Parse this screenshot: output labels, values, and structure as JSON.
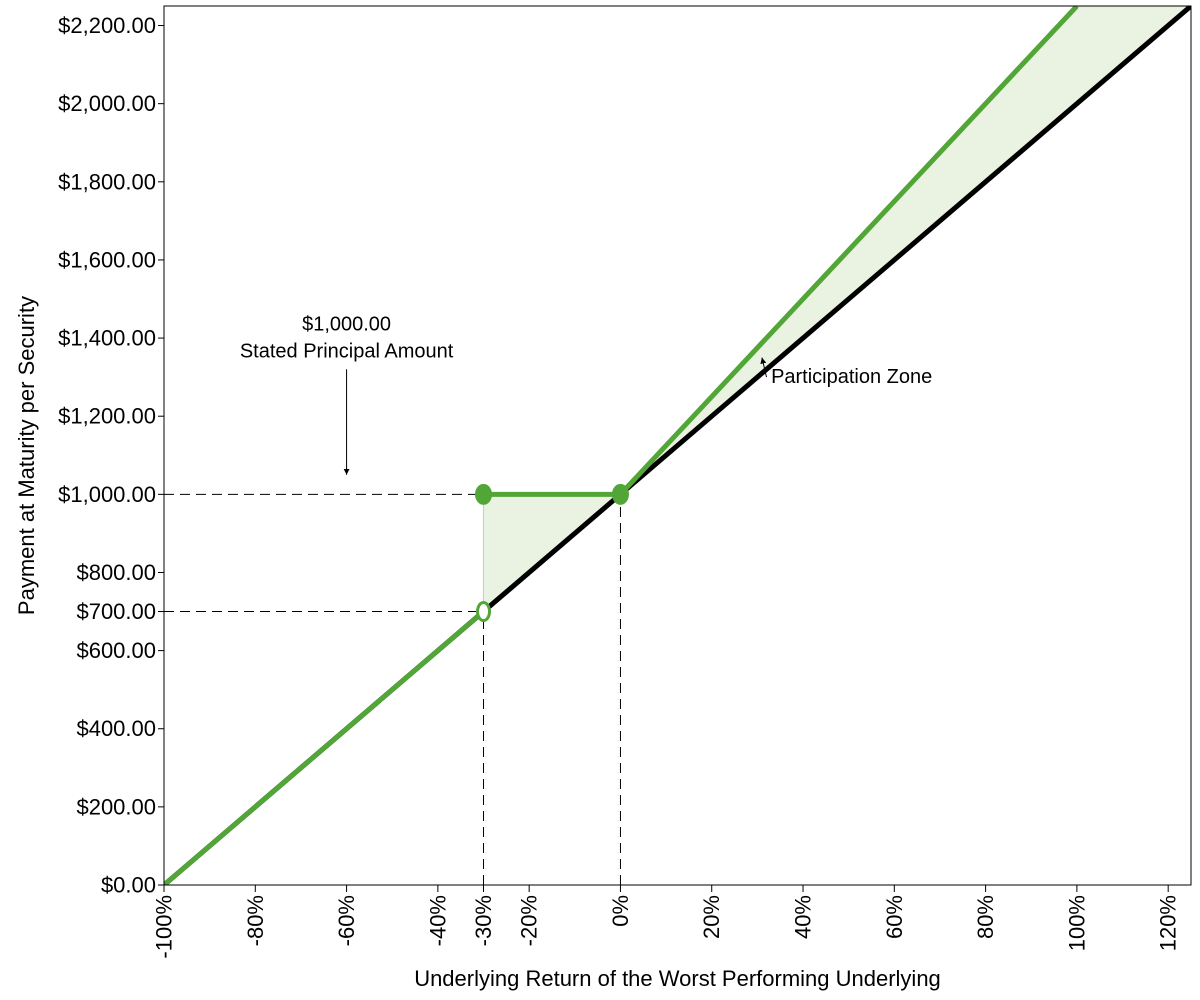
{
  "chart_data": {
    "type": "line",
    "xlabel": "Underlying Return of the Worst Performing Underlying",
    "ylabel": "Payment at Maturity per Security",
    "xlim": [
      -100,
      125
    ],
    "ylim": [
      0,
      2250
    ],
    "grid": false,
    "legend": "none",
    "x_ticks": [
      {
        "value": -100,
        "label": "-100%"
      },
      {
        "value": -80,
        "label": "-80%"
      },
      {
        "value": -60,
        "label": "-60%"
      },
      {
        "value": -40,
        "label": "-40%"
      },
      {
        "value": -30,
        "label": "-30%"
      },
      {
        "value": -20,
        "label": "-20%"
      },
      {
        "value": 0,
        "label": "0%"
      },
      {
        "value": 20,
        "label": "20%"
      },
      {
        "value": 40,
        "label": "40%"
      },
      {
        "value": 60,
        "label": "60%"
      },
      {
        "value": 80,
        "label": "80%"
      },
      {
        "value": 100,
        "label": "100%"
      },
      {
        "value": 120,
        "label": "120%"
      }
    ],
    "y_ticks": [
      {
        "value": 0,
        "label": "$0.00"
      },
      {
        "value": 200,
        "label": "$200.00"
      },
      {
        "value": 400,
        "label": "$400.00"
      },
      {
        "value": 600,
        "label": "$600.00"
      },
      {
        "value": 700,
        "label": "$700.00"
      },
      {
        "value": 800,
        "label": "$800.00"
      },
      {
        "value": 1000,
        "label": "$1,000.00"
      },
      {
        "value": 1200,
        "label": "$1,200.00"
      },
      {
        "value": 1400,
        "label": "$1,400.00"
      },
      {
        "value": 1600,
        "label": "$1,600.00"
      },
      {
        "value": 1800,
        "label": "$1,800.00"
      },
      {
        "value": 2000,
        "label": "$2,000.00"
      },
      {
        "value": 2200,
        "label": "$2,200.00"
      }
    ],
    "series": [
      {
        "role": "underlying",
        "color": "#000000",
        "points": [
          [
            -100,
            0
          ],
          [
            125,
            2250
          ]
        ]
      },
      {
        "role": "security-payoff",
        "color": "#52a637",
        "segments": [
          [
            [
              -100,
              0
            ],
            [
              -30,
              700
            ]
          ],
          [
            [
              -30,
              1000
            ],
            [
              0,
              1000
            ]
          ],
          [
            [
              0,
              1000
            ],
            [
              100,
              2250
            ]
          ]
        ]
      }
    ],
    "markers": [
      {
        "x": -30,
        "y": 1000,
        "filled": true
      },
      {
        "x": 0,
        "y": 1000,
        "filled": true
      },
      {
        "x": -30,
        "y": 700,
        "filled": false
      }
    ],
    "shaded_regions": [
      {
        "color": "#eaf3e1",
        "points": [
          [
            -30,
            700
          ],
          [
            -30,
            1000
          ],
          [
            0,
            1000
          ]
        ]
      },
      {
        "color": "#eaf3e1",
        "points": [
          [
            0,
            1000
          ],
          [
            100,
            2250
          ],
          [
            125,
            2250
          ]
        ]
      }
    ],
    "reference_lines": [
      {
        "from": [
          -100,
          1000
        ],
        "to": [
          -30,
          1000
        ]
      },
      {
        "from": [
          -100,
          700
        ],
        "to": [
          -30,
          700
        ]
      },
      {
        "from": [
          -30,
          0
        ],
        "to": [
          -30,
          700
        ]
      },
      {
        "from": [
          0,
          0
        ],
        "to": [
          0,
          1000
        ]
      }
    ],
    "annotations": [
      {
        "id": "principal",
        "lines": [
          "$1,000.00",
          "Stated Principal Amount"
        ],
        "text_at": [
          -60,
          1420
        ],
        "arrow_from": [
          -60,
          1320
        ],
        "arrow_to": [
          -60,
          1050
        ]
      },
      {
        "id": "participation",
        "lines": [
          "Participation Zone"
        ],
        "text_at": [
          33,
          1285
        ],
        "arrow_from": [
          32,
          1300
        ],
        "arrow_to": [
          31,
          1350
        ]
      }
    ]
  }
}
